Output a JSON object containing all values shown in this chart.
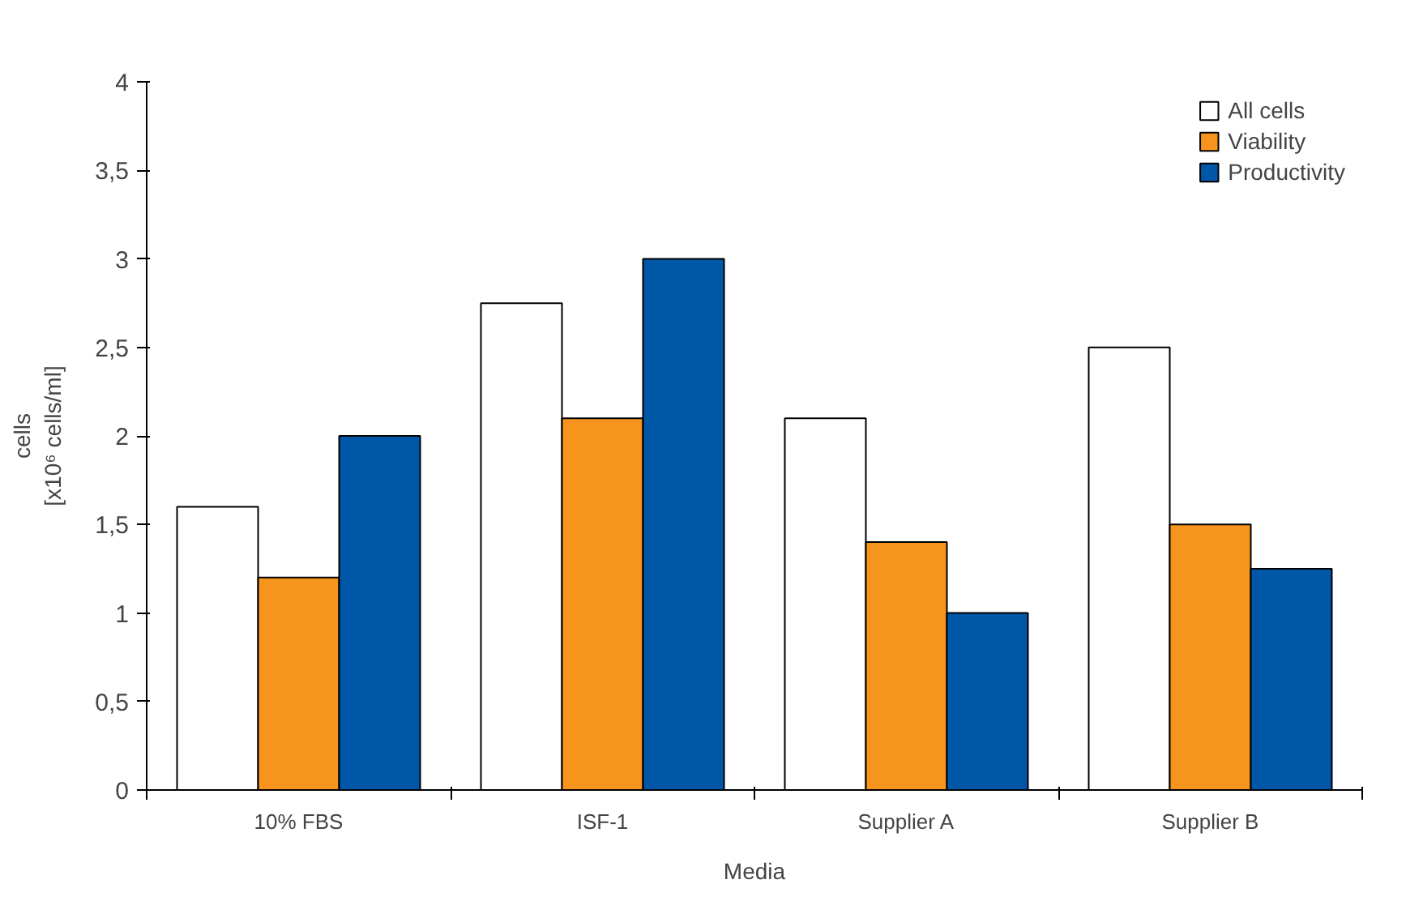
{
  "chart_data": {
    "type": "bar",
    "xlabel": "Media",
    "ylabel": "cells\n[x10⁶ cells/ml]",
    "categories": [
      "10% FBS",
      "ISF-1",
      "Supplier A",
      "Supplier B"
    ],
    "series": [
      {
        "name": "All cells",
        "color": "#ffffff",
        "values": [
          1.6,
          2.75,
          2.1,
          2.5
        ]
      },
      {
        "name": "Viability",
        "color": "#f7941d",
        "values": [
          1.2,
          2.1,
          1.4,
          1.5
        ]
      },
      {
        "name": "Productivity",
        "color": "#0057a8",
        "values": [
          2.0,
          3.0,
          1.0,
          1.25
        ]
      }
    ],
    "ylim": [
      0,
      4
    ],
    "yticks": [
      0,
      {
        "value": 0.5,
        "label": "0,5"
      },
      1,
      {
        "value": 1.5,
        "label": "1,5"
      },
      2,
      {
        "value": 2.5,
        "label": "2,5"
      },
      3,
      {
        "value": 3.5,
        "label": "3,5"
      },
      4
    ],
    "grid": false,
    "legend": "top right"
  }
}
